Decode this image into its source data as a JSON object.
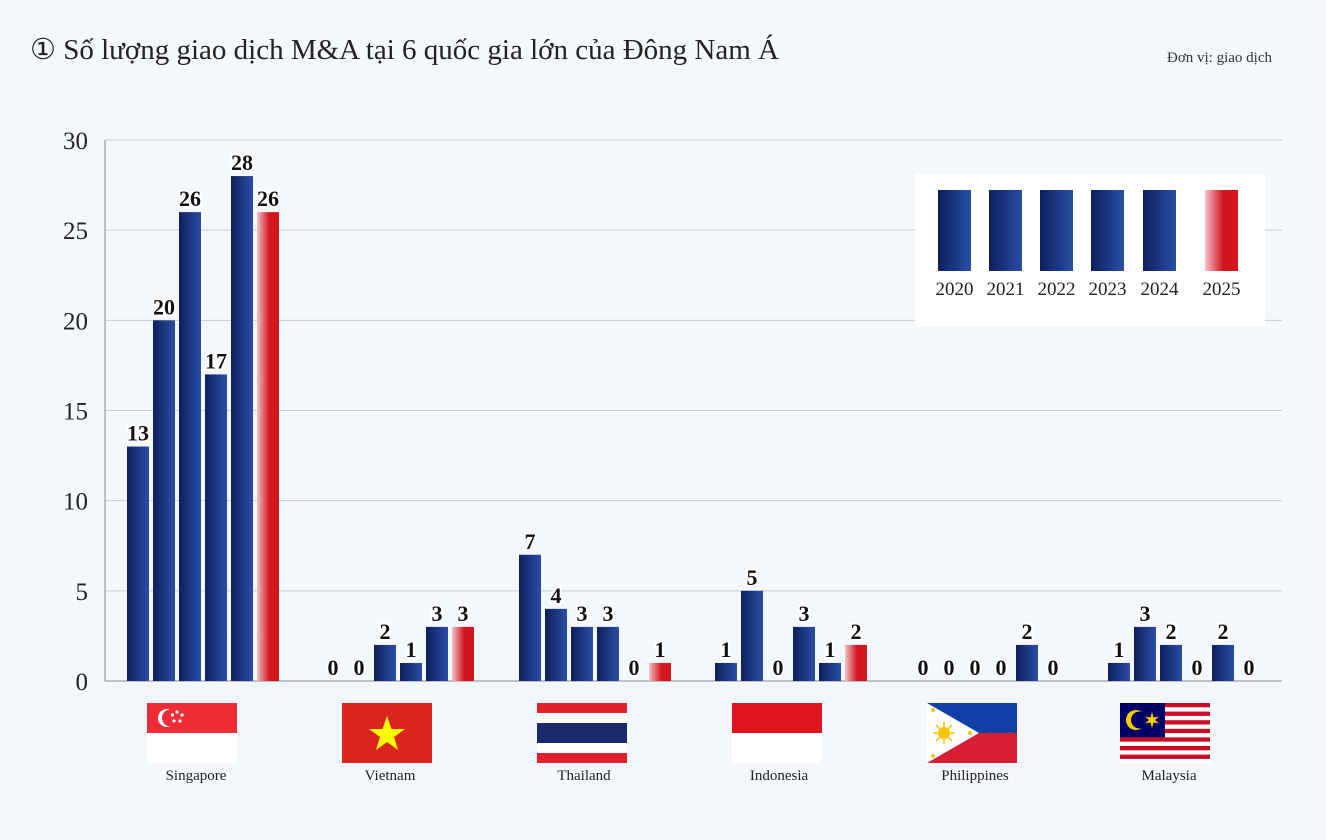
{
  "header": {
    "title": "① Số lượng giao dịch M&A tại 6 quốc gia lớn của Đông Nam Á",
    "unit": "Đơn vị: giao dịch"
  },
  "colors": {
    "bar_dark": "#0d1f5c",
    "bar_light": "#2a4ea6",
    "bar_2025_dark": "#d2161f",
    "bar_2025_light": "#f3c2c6",
    "grid": "#c7ccd6",
    "axis": "#222222"
  },
  "chart_data": {
    "type": "bar",
    "ylim": [
      0,
      30
    ],
    "yticks": [
      0,
      5,
      10,
      15,
      20,
      25,
      30
    ],
    "grid": true,
    "legend_position": "top-right",
    "categories": [
      "Singapore",
      "Vietnam",
      "Thailand",
      "Indonesia",
      "Philippines",
      "Malaysia"
    ],
    "series": [
      {
        "name": "2020",
        "values": [
          13,
          0,
          7,
          1,
          0,
          1
        ]
      },
      {
        "name": "2021",
        "values": [
          20,
          0,
          4,
          5,
          0,
          3
        ]
      },
      {
        "name": "2022",
        "values": [
          26,
          2,
          3,
          0,
          0,
          2
        ]
      },
      {
        "name": "2023",
        "values": [
          17,
          1,
          3,
          3,
          0,
          0
        ]
      },
      {
        "name": "2024",
        "values": [
          28,
          3,
          0,
          1,
          2,
          2
        ]
      },
      {
        "name": "2025",
        "values": [
          26,
          3,
          1,
          2,
          0,
          0
        ]
      }
    ]
  },
  "flags": [
    "singapore-flag-icon",
    "vietnam-flag-icon",
    "thailand-flag-icon",
    "indonesia-flag-icon",
    "philippines-flag-icon",
    "malaysia-flag-icon"
  ]
}
